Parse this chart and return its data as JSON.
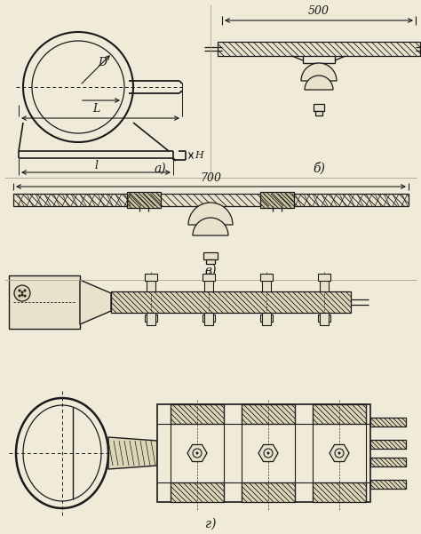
{
  "bg_color": "#f0ead8",
  "line_color": "#1a1a1a",
  "label_a": "а)",
  "label_b": "б)",
  "label_v": "в)",
  "label_g": "г)",
  "dim_500": "500",
  "dim_700": "700",
  "label_D": "D",
  "label_L": "L",
  "label_l": "l",
  "label_H": "H"
}
